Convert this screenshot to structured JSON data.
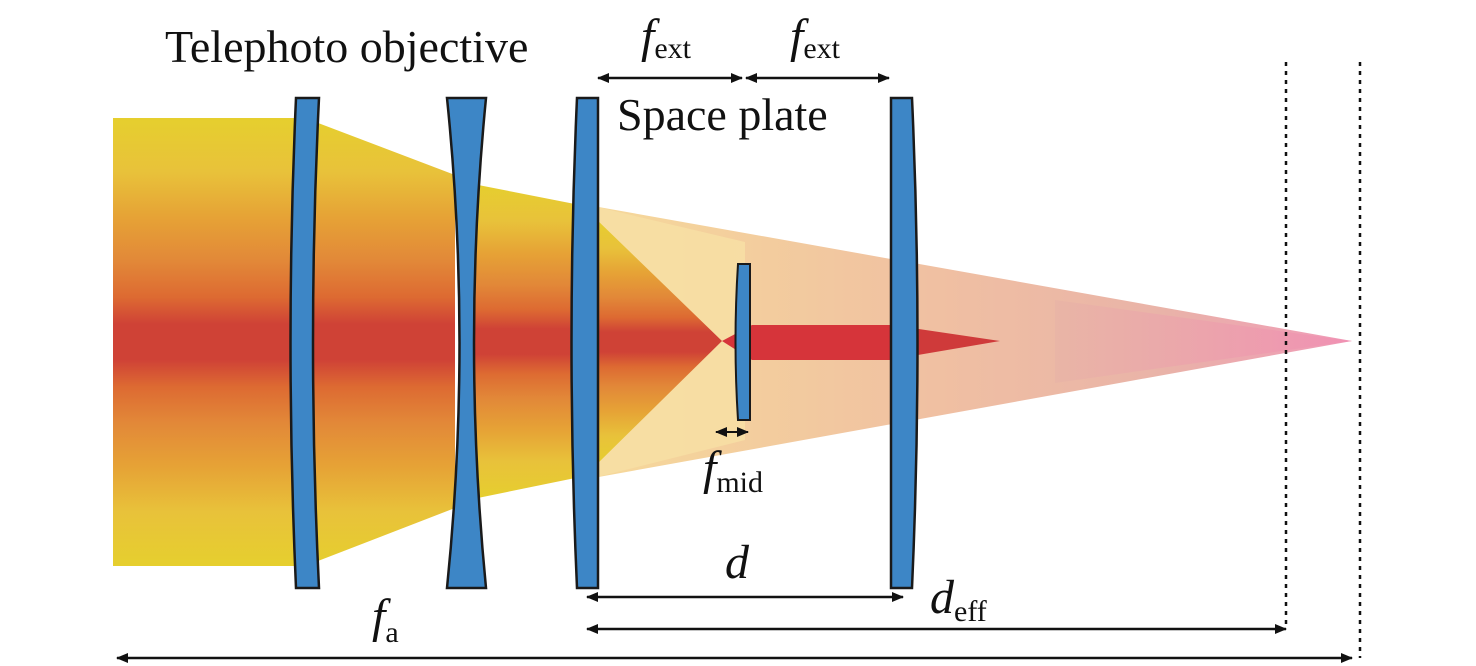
{
  "labels": {
    "telephoto_objective": "Telephoto objective",
    "space_plate": "Space plate",
    "f_ext_left": {
      "base": "f",
      "sub": "ext"
    },
    "f_ext_right": {
      "base": "f",
      "sub": "ext"
    },
    "f_mid": {
      "base": "f",
      "sub": "mid"
    },
    "d": "d",
    "d_eff": {
      "base": "d",
      "sub": "eff"
    },
    "f_a": {
      "base": "f",
      "sub": "a"
    }
  },
  "colors": {
    "lens_fill": "#3d86c6",
    "lens_stroke": "#1a1a1a",
    "beam_outer": "#e8c630",
    "beam_mid": "#e59a35",
    "beam_inner": "#dd6a32",
    "beam_core": "#cf3f36",
    "cone_light": "#f7dca0",
    "cone_pink": "#efb0a8",
    "focus_pink": "#ef93b5",
    "arrow": "#111111"
  }
}
